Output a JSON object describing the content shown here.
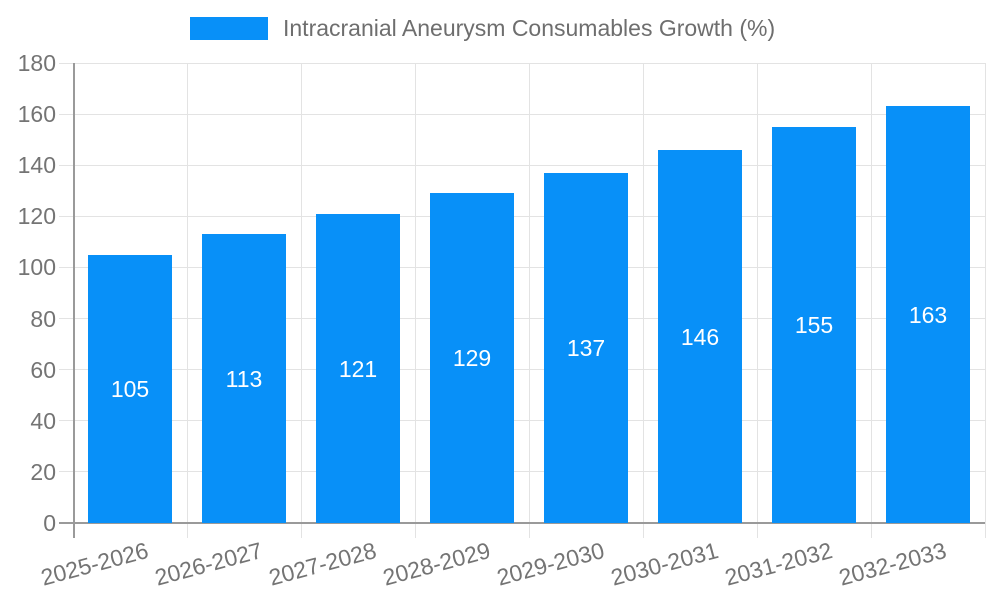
{
  "chart_data": {
    "type": "bar",
    "title": "Intracranial Aneurysm Consumables Growth (%)",
    "categories": [
      "2025-2026",
      "2026-2027",
      "2027-2028",
      "2028-2029",
      "2029-2030",
      "2030-2031",
      "2031-2032",
      "2032-2033"
    ],
    "values": [
      105,
      113,
      121,
      129,
      137,
      146,
      155,
      163
    ],
    "ytick_labels": [
      "0",
      "20",
      "40",
      "60",
      "80",
      "100",
      "120",
      "140",
      "160",
      "180"
    ],
    "ylim": [
      0,
      180
    ],
    "ytick_step": 20,
    "grid": true,
    "legend_position": "top",
    "xtick_rotation_deg": -15,
    "colors": {
      "bar": "#0890F8",
      "bar_label": "#ffffff",
      "grid": "#e3e3e3",
      "axis": "#9a9a9a",
      "tick_label": "#747474",
      "legend_text": "#6e6e6e"
    }
  }
}
